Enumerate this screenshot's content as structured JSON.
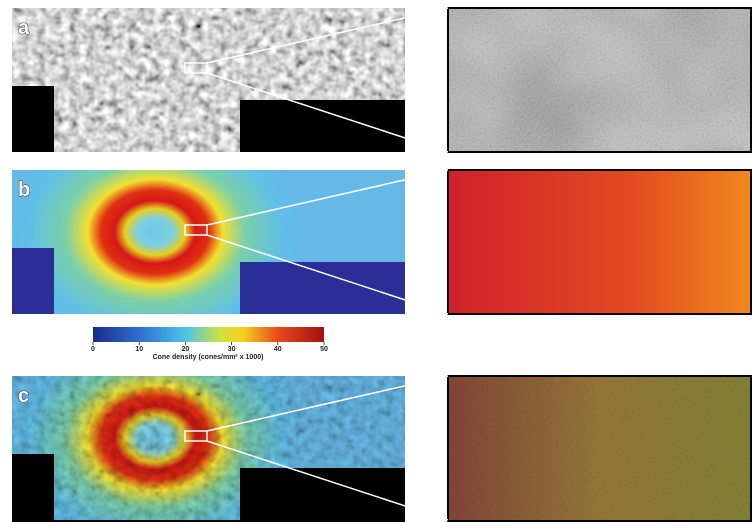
{
  "panels": [
    {
      "label": "a"
    },
    {
      "label": "b"
    },
    {
      "label": "c"
    }
  ],
  "colorbar": {
    "lim": [
      0,
      50
    ],
    "ticks": [
      0,
      10,
      20,
      30,
      40,
      50
    ],
    "label": "Cone density (cones/mm² x 1000)"
  }
}
